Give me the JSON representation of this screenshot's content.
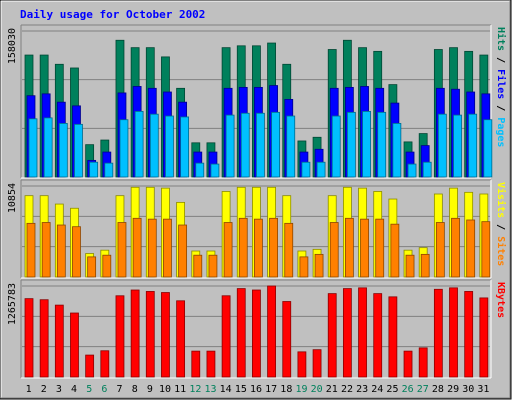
{
  "title": "Daily usage for October 2002",
  "colors": {
    "background": "#C0C0C0",
    "title": "#0000FF",
    "hits": "#00805C",
    "files": "#0000FF",
    "pages": "#00C0FF",
    "visits": "#FFFF00",
    "sites": "#FF8000",
    "kbytes": "#FF0000",
    "weekday": "#000000",
    "weekend": "#00805C"
  },
  "panels": {
    "top": {
      "max_label": "158030",
      "side_parts": [
        {
          "text": "Pages",
          "color": "#00C0FF"
        },
        {
          "text": " / ",
          "color": "#000000"
        },
        {
          "text": "Files",
          "color": "#0000FF"
        },
        {
          "text": " / ",
          "color": "#000000"
        },
        {
          "text": "Hits",
          "color": "#00805C"
        }
      ]
    },
    "middle": {
      "max_label": "10854",
      "side_parts": [
        {
          "text": "Sites",
          "color": "#FF8000"
        },
        {
          "text": " / ",
          "color": "#000000"
        },
        {
          "text": "Visits",
          "color": "#FFFF00"
        }
      ]
    },
    "bottom": {
      "max_label": "1265783",
      "side_parts": [
        {
          "text": "KBytes",
          "color": "#FF0000"
        }
      ]
    }
  },
  "chart_data": {
    "type": "bar",
    "title": "Daily usage for October 2002",
    "categories": [
      "1",
      "2",
      "3",
      "4",
      "5",
      "6",
      "7",
      "8",
      "9",
      "10",
      "11",
      "12",
      "13",
      "14",
      "15",
      "16",
      "17",
      "18",
      "19",
      "20",
      "21",
      "22",
      "23",
      "24",
      "25",
      "26",
      "27",
      "28",
      "29",
      "30",
      "31"
    ],
    "weekend_days": [
      5,
      6,
      12,
      13,
      19,
      20,
      26,
      27
    ],
    "panels": [
      {
        "name": "Pages / Files / Hits",
        "ymax": 158030,
        "series": [
          {
            "name": "Hits",
            "values": [
              132000,
              132000,
              122000,
              118000,
              35000,
              40000,
              148000,
              140000,
              140000,
              130000,
              96000,
              37000,
              37000,
              140000,
              142000,
              142000,
              145000,
              122000,
              39000,
              43000,
              138000,
              148000,
              140000,
              136000,
              100000,
              38000,
              47000,
              138000,
              140000,
              136000,
              132000
            ]
          },
          {
            "name": "Files",
            "values": [
              88000,
              90000,
              81000,
              77000,
              18000,
              27000,
              91000,
              98000,
              96000,
              92000,
              81000,
              27000,
              27000,
              96000,
              97000,
              97000,
              99000,
              84000,
              27000,
              30000,
              96000,
              97000,
              98000,
              96000,
              80000,
              27000,
              34000,
              96000,
              95000,
              92000,
              90000
            ]
          },
          {
            "name": "Pages",
            "values": [
              63000,
              64000,
              58000,
              57000,
              16000,
              15000,
              62000,
              71000,
              68000,
              66000,
              65000,
              15000,
              14000,
              67000,
              69000,
              69000,
              70000,
              66000,
              16000,
              16000,
              66000,
              70000,
              71000,
              70000,
              58000,
              14000,
              16000,
              68000,
              67000,
              68000,
              62000
            ]
          }
        ]
      },
      {
        "name": "Sites / Visits",
        "ymax": 10854,
        "series": [
          {
            "name": "Visits",
            "values": [
              9700,
              9700,
              8700,
              8200,
              2800,
              3200,
              9700,
              10700,
              10700,
              10600,
              8900,
              3100,
              3100,
              10200,
              10700,
              10700,
              10700,
              9700,
              3100,
              3300,
              9700,
              10700,
              10600,
              10200,
              9300,
              3200,
              3500,
              9900,
              10600,
              10100,
              9900
            ]
          },
          {
            "name": "Sites",
            "values": [
              6400,
              6500,
              6200,
              6000,
              2400,
              2600,
              6500,
              7000,
              6900,
              6900,
              6200,
              2600,
              2600,
              6500,
              7000,
              6900,
              7000,
              6400,
              2400,
              2700,
              6500,
              7000,
              6900,
              6900,
              6300,
              2600,
              2700,
              6500,
              7000,
              6800,
              6600
            ]
          }
        ]
      },
      {
        "name": "KBytes",
        "ymax": 1265783,
        "series": [
          {
            "name": "KBytes",
            "values": [
              1090000,
              1075000,
              1000000,
              890000,
              305000,
              365000,
              1130000,
              1210000,
              1190000,
              1175000,
              1060000,
              360000,
              360000,
              1130000,
              1230000,
              1210000,
              1265783,
              1050000,
              350000,
              380000,
              1160000,
              1230000,
              1240000,
              1160000,
              1115000,
              360000,
              405000,
              1220000,
              1240000,
              1190000,
              1100000
            ]
          }
        ]
      }
    ]
  }
}
